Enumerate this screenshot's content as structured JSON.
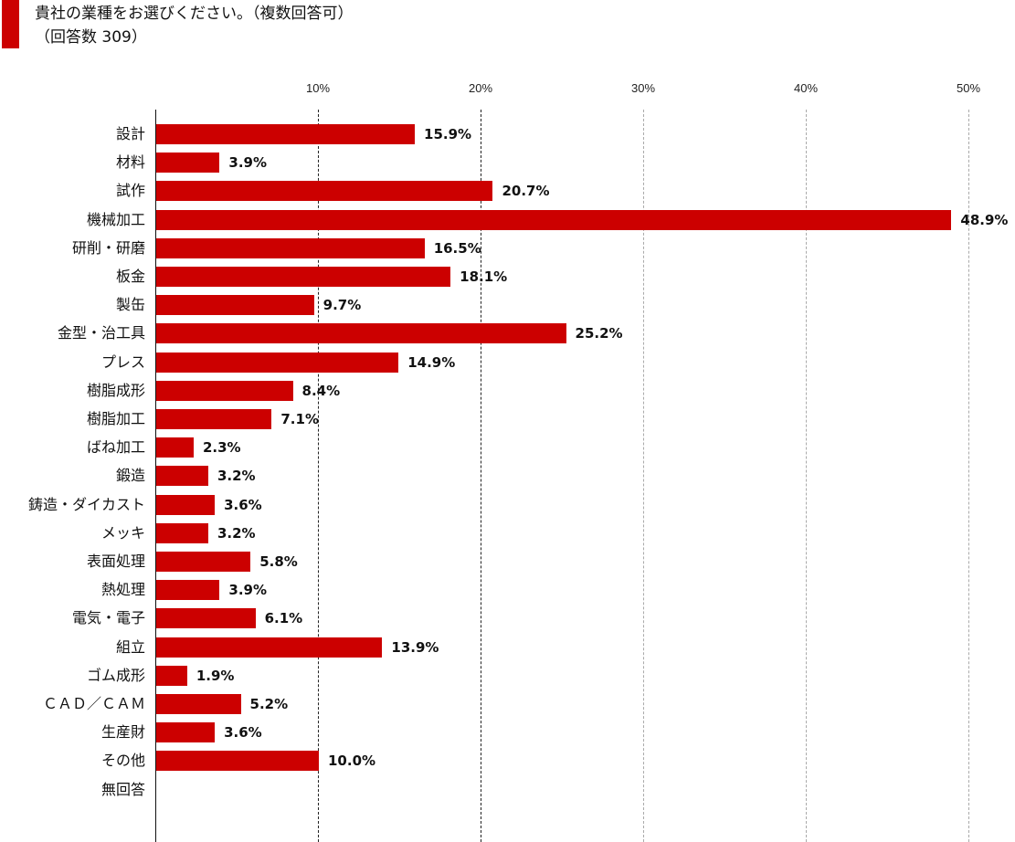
{
  "title": {
    "line1": "貴社の業種をお選びください。（複数回答可）",
    "line2": "（回答数 309）",
    "accent_color": "#cc0000"
  },
  "chart_data": {
    "type": "bar",
    "orientation": "horizontal",
    "title": "貴社の業種をお選びください。（複数回答可）（回答数 309）",
    "xlabel": "",
    "ylabel": "",
    "xlim": [
      0,
      50
    ],
    "x_ticks": [
      "10%",
      "20%",
      "30%",
      "40%",
      "50%"
    ],
    "grid": "vertical dashed",
    "bar_color": "#cc0000",
    "categories": [
      "設計",
      "材料",
      "試作",
      "機械加工",
      "研削・研磨",
      "板金",
      "製缶",
      "金型・治工具",
      "プレス",
      "樹脂成形",
      "樹脂加工",
      "ばね加工",
      "鍛造",
      "鋳造・ダイカスト",
      "メッキ",
      "表面処理",
      "熱処理",
      "電気・電子",
      "組立",
      "ゴム成形",
      "ＣＡＤ／ＣＡＭ",
      "生産財",
      "その他",
      "無回答"
    ],
    "values": [
      15.9,
      3.9,
      20.7,
      48.9,
      16.5,
      18.1,
      9.7,
      25.2,
      14.9,
      8.4,
      7.1,
      2.3,
      3.2,
      3.6,
      3.2,
      5.8,
      3.9,
      6.1,
      13.9,
      1.9,
      5.2,
      3.6,
      10.0,
      null
    ],
    "labels": [
      "15.9%",
      "3.9%",
      "20.7%",
      "48.9%",
      "16.5%",
      "18.1%",
      "9.7%",
      "25.2%",
      "14.9%",
      "8.4%",
      "7.1%",
      "2.3%",
      "3.2%",
      "3.6%",
      "3.2%",
      "5.8%",
      "3.9%",
      "6.1%",
      "13.9%",
      "1.9%",
      "5.2%",
      "3.6%",
      "10.0%",
      ""
    ]
  }
}
